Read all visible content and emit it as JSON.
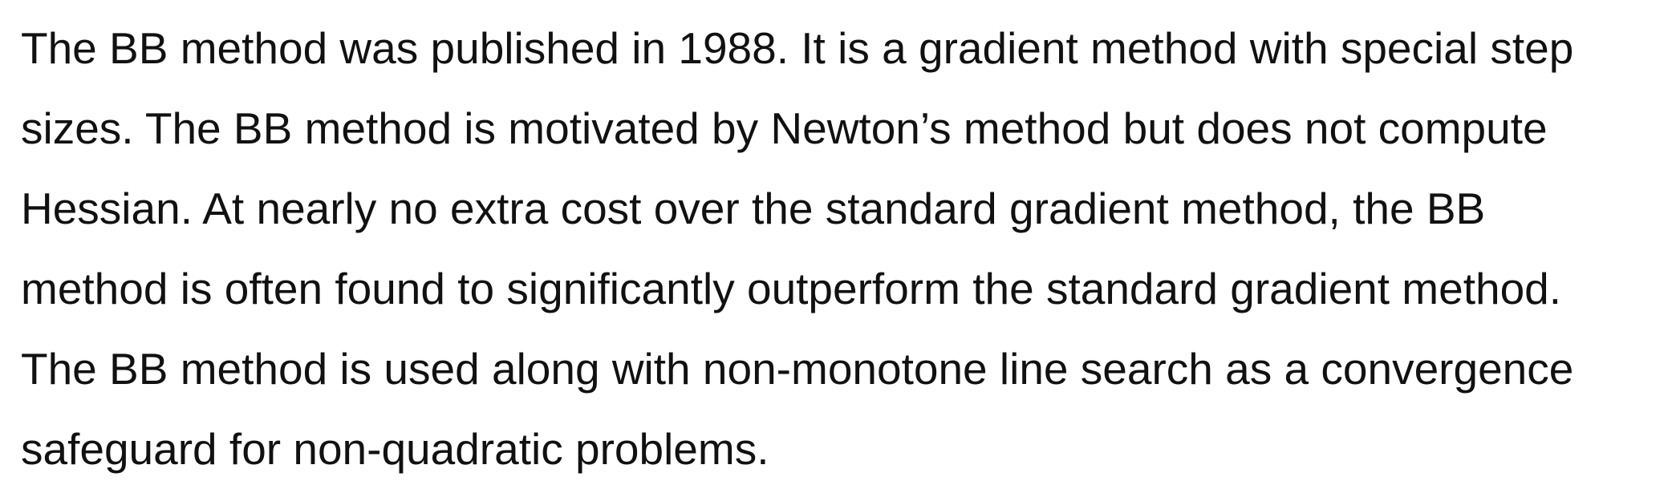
{
  "paragraph": {
    "lines": [
      "The BB method was published in 1988. It is a gradient method with special step",
      "sizes. The BB method is motivated by Newton’s method but does not compute",
      "Hessian. At nearly no extra cost over the standard gradient method, the BB",
      "method is often found to significantly outperform the standard gradient method.",
      "The BB method is used along with non-monotone line search as a convergence",
      "safeguard for non-quadratic problems."
    ]
  }
}
